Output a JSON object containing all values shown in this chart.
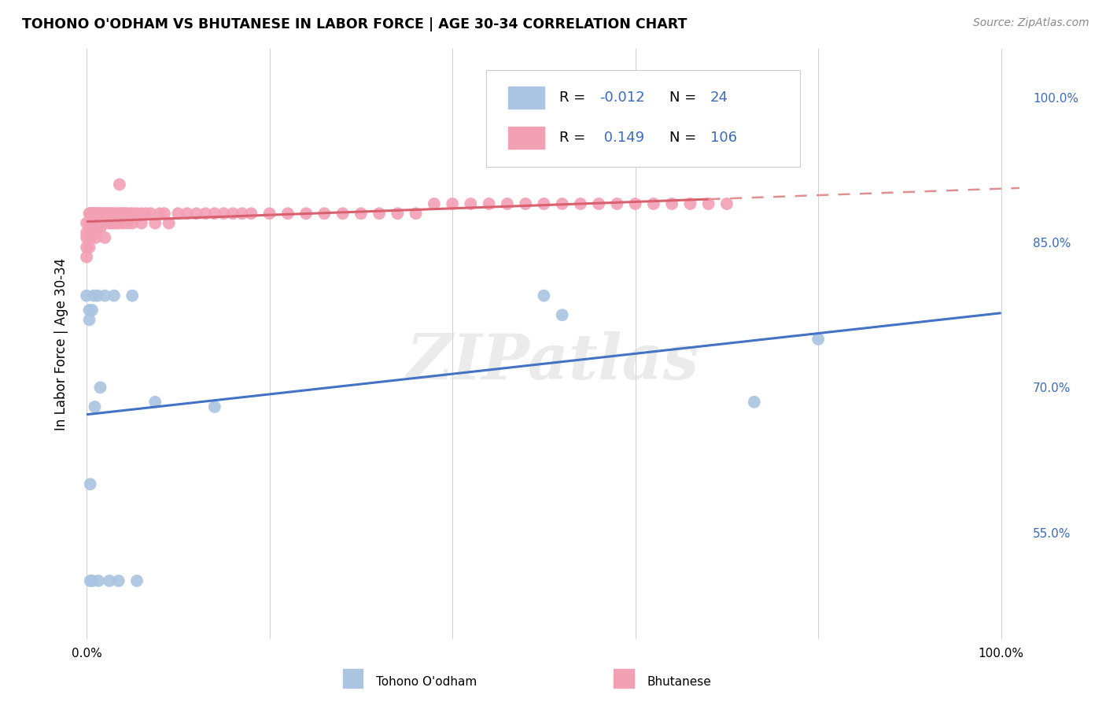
{
  "title": "TOHONO O'ODHAM VS BHUTANESE IN LABOR FORCE | AGE 30-34 CORRELATION CHART",
  "source": "Source: ZipAtlas.com",
  "ylabel": "In Labor Force | Age 30-34",
  "xlim": [
    -0.01,
    1.03
  ],
  "ylim": [
    0.44,
    1.05
  ],
  "y_ticks_right": [
    0.55,
    0.7,
    0.85,
    1.0
  ],
  "y_tick_labels_right": [
    "55.0%",
    "70.0%",
    "85.0%",
    "100.0%"
  ],
  "tohono_color": "#aac4e2",
  "bhutanese_color": "#f2a0b4",
  "tohono_line_color": "#4472c4",
  "bhutanese_line_color": "#d9606e",
  "bhutanese_dash_color": "#e09090",
  "watermark": "ZIPatlas",
  "R_tohono": -0.012,
  "N_tohono": 24,
  "R_bhutanese": 0.149,
  "N_bhutanese": 106,
  "tohono_x": [
    0.0,
    0.003,
    0.003,
    0.004,
    0.004,
    0.006,
    0.006,
    0.008,
    0.009,
    0.012,
    0.013,
    0.015,
    0.02,
    0.025,
    0.03,
    0.035,
    0.05,
    0.055,
    0.075,
    0.14,
    0.5,
    0.52,
    0.73,
    0.8
  ],
  "tohono_y": [
    0.795,
    0.78,
    0.77,
    0.6,
    0.5,
    0.78,
    0.5,
    0.795,
    0.68,
    0.795,
    0.5,
    0.7,
    0.795,
    0.5,
    0.795,
    0.5,
    0.795,
    0.5,
    0.685,
    0.68,
    0.795,
    0.775,
    0.685,
    0.75
  ],
  "bhutanese_x": [
    0.0,
    0.0,
    0.0,
    0.0,
    0.0,
    0.003,
    0.003,
    0.003,
    0.003,
    0.003,
    0.004,
    0.004,
    0.004,
    0.005,
    0.005,
    0.005,
    0.006,
    0.006,
    0.007,
    0.007,
    0.008,
    0.008,
    0.009,
    0.009,
    0.01,
    0.01,
    0.01,
    0.012,
    0.012,
    0.013,
    0.014,
    0.015,
    0.015,
    0.016,
    0.017,
    0.018,
    0.02,
    0.02,
    0.02,
    0.022,
    0.023,
    0.025,
    0.025,
    0.026,
    0.027,
    0.028,
    0.03,
    0.03,
    0.032,
    0.033,
    0.035,
    0.035,
    0.036,
    0.038,
    0.04,
    0.04,
    0.042,
    0.044,
    0.045,
    0.048,
    0.05,
    0.05,
    0.055,
    0.06,
    0.06,
    0.065,
    0.07,
    0.075,
    0.08,
    0.085,
    0.09,
    0.1,
    0.11,
    0.12,
    0.13,
    0.14,
    0.15,
    0.16,
    0.17,
    0.18,
    0.2,
    0.22,
    0.24,
    0.26,
    0.28,
    0.3,
    0.32,
    0.34,
    0.36,
    0.38,
    0.4,
    0.42,
    0.44,
    0.46,
    0.48,
    0.5,
    0.52,
    0.54,
    0.56,
    0.58,
    0.6,
    0.62,
    0.64,
    0.66,
    0.68,
    0.7
  ],
  "bhutanese_y": [
    0.87,
    0.86,
    0.855,
    0.845,
    0.835,
    0.88,
    0.87,
    0.86,
    0.855,
    0.845,
    0.88,
    0.87,
    0.855,
    0.88,
    0.87,
    0.855,
    0.88,
    0.87,
    0.88,
    0.865,
    0.88,
    0.86,
    0.88,
    0.865,
    0.88,
    0.87,
    0.855,
    0.88,
    0.865,
    0.88,
    0.87,
    0.88,
    0.865,
    0.88,
    0.87,
    0.88,
    0.88,
    0.87,
    0.855,
    0.88,
    0.88,
    0.88,
    0.87,
    0.88,
    0.87,
    0.88,
    0.88,
    0.87,
    0.88,
    0.87,
    0.88,
    0.87,
    0.91,
    0.88,
    0.88,
    0.87,
    0.88,
    0.88,
    0.87,
    0.88,
    0.88,
    0.87,
    0.88,
    0.88,
    0.87,
    0.88,
    0.88,
    0.87,
    0.88,
    0.88,
    0.87,
    0.88,
    0.88,
    0.88,
    0.88,
    0.88,
    0.88,
    0.88,
    0.88,
    0.88,
    0.88,
    0.88,
    0.88,
    0.88,
    0.88,
    0.88,
    0.88,
    0.88,
    0.88,
    0.89,
    0.89,
    0.89,
    0.89,
    0.89,
    0.89,
    0.89,
    0.89,
    0.89,
    0.89,
    0.89,
    0.89,
    0.89,
    0.89,
    0.89,
    0.89,
    0.89
  ]
}
